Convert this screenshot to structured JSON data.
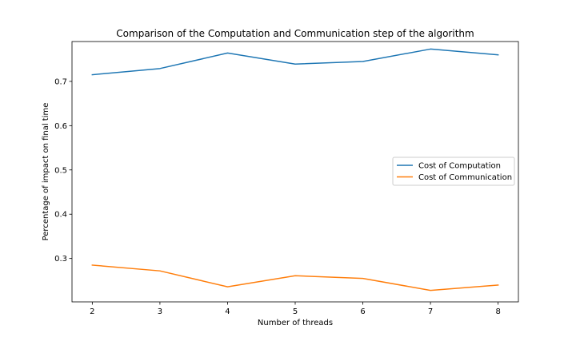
{
  "chart_data": {
    "type": "line",
    "title": "Comparison of the Computation and Communication step of the algorithm",
    "xlabel": "Number of threads",
    "ylabel": "Percentage of impact on final time",
    "x": [
      2,
      3,
      4,
      5,
      6,
      7,
      8
    ],
    "xticks": [
      "2",
      "3",
      "4",
      "5",
      "6",
      "7",
      "8"
    ],
    "yticks": [
      "0.3",
      "0.4",
      "0.5",
      "0.6",
      "0.7"
    ],
    "xlim": [
      1.7,
      8.3
    ],
    "ylim": [
      0.202,
      0.79
    ],
    "grid": false,
    "legend_position": "center-right",
    "series": [
      {
        "name": "Cost of Computation",
        "color": "#1f77b4",
        "values": [
          0.715,
          0.729,
          0.764,
          0.739,
          0.745,
          0.773,
          0.76
        ]
      },
      {
        "name": "Cost of Communication",
        "color": "#ff7f0e",
        "values": [
          0.285,
          0.272,
          0.236,
          0.261,
          0.255,
          0.228,
          0.24
        ]
      }
    ]
  }
}
